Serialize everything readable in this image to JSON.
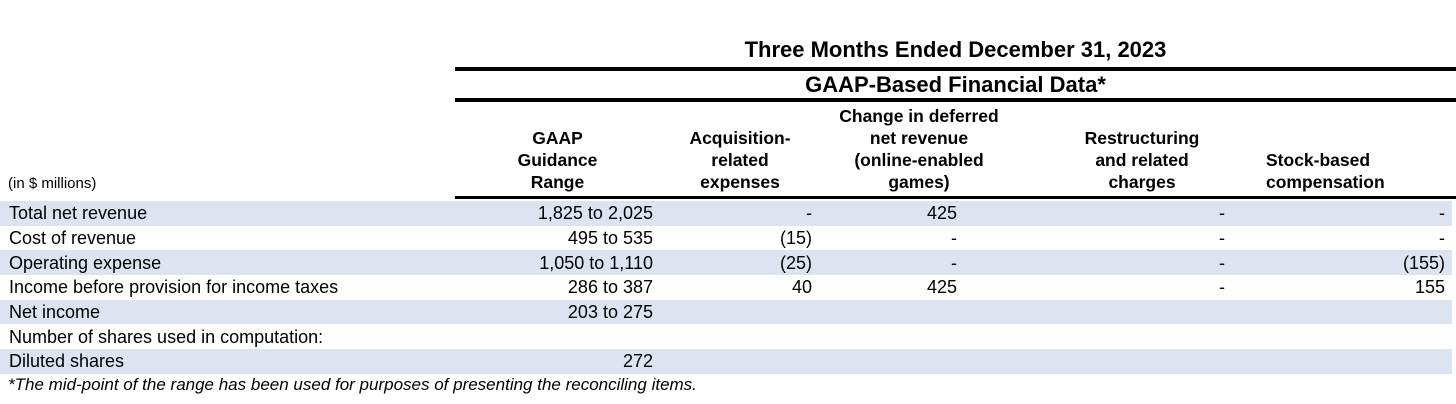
{
  "page": {
    "title": "Three Months Ended December 31, 2023",
    "subtitle": "GAAP-Based Financial Data*",
    "units_note": "(in $ millions)",
    "footnote": "*The mid-point of the range has been used for purposes of presenting the reconciling items."
  },
  "table": {
    "column_headers": [
      "GAAP\nGuidance\nRange",
      "Acquisition-\nrelated\nexpenses",
      "Change in deferred\nnet revenue\n(online-enabled\ngames)",
      "Restructuring\nand related\ncharges",
      "Stock-based\ncompensation"
    ],
    "rows": [
      {
        "label": "Total net revenue",
        "values": [
          "1,825 to 2,025",
          "-",
          "425",
          "-",
          "-"
        ]
      },
      {
        "label": "Cost of revenue",
        "values": [
          "495 to 535",
          "(15)",
          "-",
          "-",
          "-"
        ]
      },
      {
        "label": "Operating expense",
        "values": [
          "1,050 to 1,110",
          "(25)",
          "-",
          "-",
          "(155)"
        ]
      },
      {
        "label": "Income before provision for income taxes",
        "values": [
          "286 to 387",
          "40",
          "425",
          "-",
          "155"
        ]
      },
      {
        "label": "Net income",
        "values": [
          "203 to 275",
          "",
          "",
          "",
          ""
        ]
      },
      {
        "label": "Number of shares used in computation:",
        "values": [
          "",
          "",
          "",
          "",
          ""
        ]
      },
      {
        "label": "Diluted shares",
        "values": [
          "272",
          "",
          "",
          "",
          ""
        ]
      }
    ]
  },
  "colors": {
    "row_shade": "#dbe4f0",
    "rule": "#000000",
    "text": "#000000",
    "background": "#ffffff"
  }
}
